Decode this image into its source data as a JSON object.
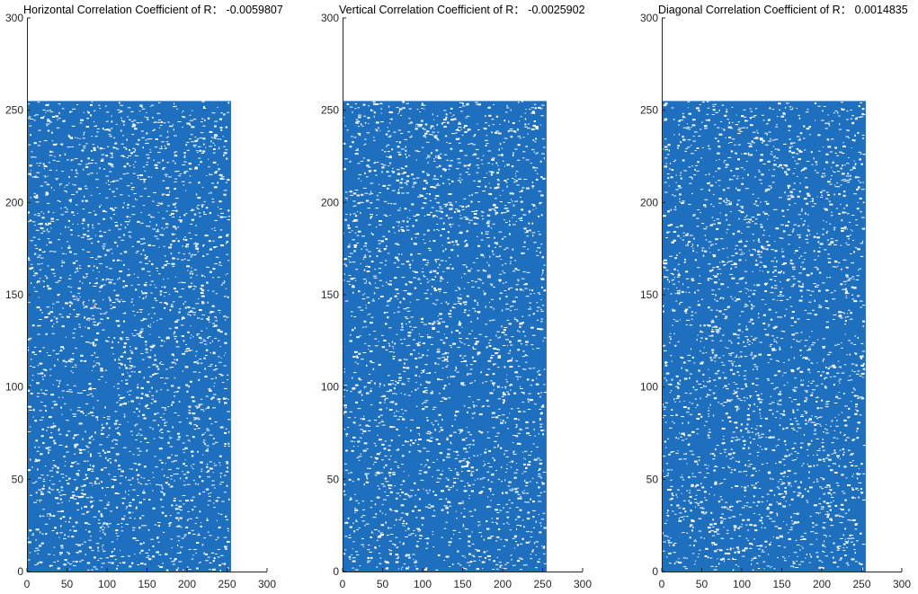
{
  "chart_data": [
    {
      "type": "scatter",
      "title": "Horizontal Correlation Coefficient of R：  -0.0059807",
      "xlabel": "",
      "ylabel": "",
      "xlim": [
        0,
        300
      ],
      "ylim": [
        0,
        300
      ],
      "xticks": [
        0,
        50,
        100,
        150,
        200,
        250,
        300
      ],
      "yticks": [
        0,
        50,
        100,
        150,
        200,
        250,
        300
      ],
      "data_extent": {
        "x": [
          0,
          255
        ],
        "y": [
          0,
          255
        ]
      },
      "correlation_coefficient": -0.0059807,
      "marker_color": "#1f6fbf",
      "grid": false,
      "legend": "none"
    },
    {
      "type": "scatter",
      "title": "Vertical Correlation Coefficient of R：  -0.0025902",
      "xlabel": "",
      "ylabel": "",
      "xlim": [
        0,
        300
      ],
      "ylim": [
        0,
        300
      ],
      "xticks": [
        0,
        50,
        100,
        150,
        200,
        250,
        300
      ],
      "yticks": [
        0,
        50,
        100,
        150,
        200,
        250,
        300
      ],
      "data_extent": {
        "x": [
          0,
          255
        ],
        "y": [
          0,
          255
        ]
      },
      "correlation_coefficient": -0.0025902,
      "marker_color": "#1f6fbf",
      "grid": false,
      "legend": "none"
    },
    {
      "type": "scatter",
      "title": "Diagonal Correlation Coefficient of R：  0.0014835",
      "xlabel": "",
      "ylabel": "",
      "xlim": [
        0,
        300
      ],
      "ylim": [
        0,
        300
      ],
      "xticks": [
        0,
        50,
        100,
        150,
        200,
        250,
        300
      ],
      "yticks": [
        0,
        50,
        100,
        150,
        200,
        250,
        300
      ],
      "data_extent": {
        "x": [
          0,
          255
        ],
        "y": [
          0,
          255
        ]
      },
      "correlation_coefficient": 0.0014835,
      "marker_color": "#1f6fbf",
      "grid": false,
      "legend": "none"
    }
  ]
}
